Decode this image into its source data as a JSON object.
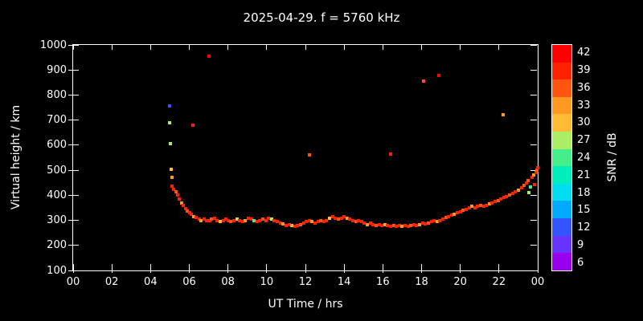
{
  "chart_data": {
    "type": "scatter",
    "title": "2025-04-29. f = 5760 kHz",
    "xlabel": "UT Time / hrs",
    "ylabel": "Virtual height / km",
    "colorbar_label": "SNR / dB",
    "background": "#000000",
    "grid": false,
    "xlim": [
      0,
      24
    ],
    "ylim": [
      100,
      1000
    ],
    "xticks": [
      {
        "v": 0,
        "label": "00"
      },
      {
        "v": 2,
        "label": "02"
      },
      {
        "v": 4,
        "label": "04"
      },
      {
        "v": 6,
        "label": "06"
      },
      {
        "v": 8,
        "label": "08"
      },
      {
        "v": 10,
        "label": "10"
      },
      {
        "v": 12,
        "label": "12"
      },
      {
        "v": 14,
        "label": "14"
      },
      {
        "v": 16,
        "label": "16"
      },
      {
        "v": 18,
        "label": "18"
      },
      {
        "v": 20,
        "label": "20"
      },
      {
        "v": 22,
        "label": "22"
      },
      {
        "v": 24,
        "label": "00"
      }
    ],
    "yticks": [
      100,
      200,
      300,
      400,
      500,
      600,
      700,
      800,
      900,
      1000
    ],
    "colorbar": {
      "min": 6,
      "max": 42,
      "step": 3,
      "labels": [
        42,
        39,
        36,
        33,
        30,
        27,
        24,
        21,
        18,
        15,
        12,
        9,
        6
      ],
      "stops": [
        {
          "value": 6,
          "color": "#9900ee"
        },
        {
          "value": 9,
          "color": "#6633ff"
        },
        {
          "value": 12,
          "color": "#3355ff"
        },
        {
          "value": 15,
          "color": "#00aaff"
        },
        {
          "value": 18,
          "color": "#00ddee"
        },
        {
          "value": 21,
          "color": "#00eebb"
        },
        {
          "value": 24,
          "color": "#44ee88"
        },
        {
          "value": 27,
          "color": "#aaee66"
        },
        {
          "value": 30,
          "color": "#ffbb33"
        },
        {
          "value": 33,
          "color": "#ff9922"
        },
        {
          "value": 36,
          "color": "#ff5511"
        },
        {
          "value": 39,
          "color": "#ff2200"
        },
        {
          "value": 42,
          "color": "#ff0000"
        }
      ]
    },
    "points_format": [
      "ut_hours",
      "virtual_height_km",
      "snr_db"
    ],
    "points": [
      [
        4.97,
        755,
        12
      ],
      [
        5.0,
        690,
        26
      ],
      [
        5.03,
        605,
        27
      ],
      [
        5.07,
        505,
        30
      ],
      [
        5.1,
        470,
        33
      ],
      [
        5.12,
        435,
        40
      ],
      [
        5.2,
        425,
        40
      ],
      [
        5.3,
        415,
        37
      ],
      [
        5.4,
        400,
        40
      ],
      [
        5.5,
        385,
        40
      ],
      [
        5.6,
        370,
        34
      ],
      [
        5.7,
        360,
        40
      ],
      [
        5.8,
        348,
        40
      ],
      [
        5.9,
        338,
        37
      ],
      [
        6.0,
        330,
        40
      ],
      [
        6.1,
        324,
        40
      ],
      [
        6.2,
        680,
        38
      ],
      [
        6.22,
        316,
        34
      ],
      [
        6.35,
        310,
        40
      ],
      [
        6.5,
        305,
        40
      ],
      [
        6.6,
        300,
        34
      ],
      [
        6.75,
        304,
        40
      ],
      [
        6.9,
        299,
        40
      ],
      [
        7.03,
        955,
        41
      ],
      [
        7.05,
        298,
        40
      ],
      [
        7.15,
        304,
        37
      ],
      [
        7.3,
        309,
        40
      ],
      [
        7.45,
        300,
        40
      ],
      [
        7.6,
        295,
        30
      ],
      [
        7.75,
        300,
        40
      ],
      [
        7.9,
        304,
        40
      ],
      [
        8.0,
        299,
        40
      ],
      [
        8.15,
        295,
        37
      ],
      [
        8.3,
        300,
        40
      ],
      [
        8.45,
        304,
        27
      ],
      [
        8.6,
        299,
        40
      ],
      [
        8.75,
        295,
        40
      ],
      [
        8.9,
        300,
        34
      ],
      [
        9.05,
        308,
        40
      ],
      [
        9.2,
        304,
        40
      ],
      [
        9.35,
        299,
        24
      ],
      [
        9.5,
        295,
        40
      ],
      [
        9.65,
        300,
        40
      ],
      [
        9.8,
        304,
        37
      ],
      [
        9.95,
        300,
        40
      ],
      [
        10.1,
        308,
        40
      ],
      [
        10.25,
        304,
        27
      ],
      [
        10.4,
        299,
        40
      ],
      [
        10.55,
        294,
        40
      ],
      [
        10.7,
        290,
        40
      ],
      [
        10.85,
        285,
        34
      ],
      [
        11.0,
        280,
        40
      ],
      [
        11.15,
        284,
        40
      ],
      [
        11.3,
        280,
        30
      ],
      [
        11.45,
        276,
        40
      ],
      [
        11.6,
        280,
        40
      ],
      [
        11.75,
        284,
        37
      ],
      [
        11.9,
        289,
        40
      ],
      [
        12.05,
        294,
        40
      ],
      [
        12.2,
        560,
        37
      ],
      [
        12.2,
        299,
        40
      ],
      [
        12.35,
        294,
        34
      ],
      [
        12.5,
        290,
        40
      ],
      [
        12.65,
        294,
        40
      ],
      [
        12.8,
        299,
        37
      ],
      [
        12.95,
        294,
        40
      ],
      [
        13.1,
        300,
        40
      ],
      [
        13.25,
        308,
        30
      ],
      [
        13.4,
        314,
        40
      ],
      [
        13.55,
        309,
        40
      ],
      [
        13.7,
        304,
        37
      ],
      [
        13.85,
        309,
        40
      ],
      [
        14.0,
        314,
        40
      ],
      [
        14.15,
        309,
        34
      ],
      [
        14.3,
        304,
        40
      ],
      [
        14.45,
        299,
        40
      ],
      [
        14.6,
        294,
        37
      ],
      [
        14.75,
        299,
        40
      ],
      [
        14.9,
        294,
        40
      ],
      [
        15.05,
        289,
        40
      ],
      [
        15.2,
        284,
        34
      ],
      [
        15.35,
        289,
        40
      ],
      [
        15.5,
        284,
        40
      ],
      [
        15.65,
        280,
        37
      ],
      [
        15.8,
        284,
        40
      ],
      [
        15.95,
        280,
        40
      ],
      [
        16.1,
        284,
        30
      ],
      [
        16.25,
        280,
        40
      ],
      [
        16.4,
        565,
        40
      ],
      [
        16.42,
        275,
        40
      ],
      [
        16.55,
        280,
        37
      ],
      [
        16.7,
        275,
        40
      ],
      [
        16.85,
        279,
        40
      ],
      [
        17.0,
        275,
        34
      ],
      [
        17.15,
        279,
        40
      ],
      [
        17.3,
        275,
        40
      ],
      [
        17.45,
        280,
        37
      ],
      [
        17.6,
        284,
        40
      ],
      [
        17.75,
        280,
        40
      ],
      [
        17.9,
        284,
        34
      ],
      [
        18.05,
        289,
        40
      ],
      [
        18.1,
        857,
        37
      ],
      [
        18.2,
        285,
        40
      ],
      [
        18.35,
        290,
        37
      ],
      [
        18.5,
        294,
        40
      ],
      [
        18.65,
        299,
        40
      ],
      [
        18.8,
        294,
        34
      ],
      [
        18.9,
        879,
        41
      ],
      [
        18.95,
        300,
        40
      ],
      [
        19.1,
        305,
        40
      ],
      [
        19.25,
        310,
        37
      ],
      [
        19.4,
        315,
        40
      ],
      [
        19.55,
        320,
        40
      ],
      [
        19.7,
        325,
        34
      ],
      [
        19.85,
        330,
        40
      ],
      [
        20.0,
        335,
        40
      ],
      [
        20.15,
        340,
        37
      ],
      [
        20.3,
        345,
        40
      ],
      [
        20.45,
        350,
        40
      ],
      [
        20.6,
        355,
        34
      ],
      [
        20.75,
        350,
        40
      ],
      [
        20.9,
        355,
        40
      ],
      [
        21.05,
        360,
        37
      ],
      [
        21.2,
        355,
        40
      ],
      [
        21.35,
        360,
        40
      ],
      [
        21.5,
        365,
        34
      ],
      [
        21.65,
        370,
        40
      ],
      [
        21.8,
        375,
        40
      ],
      [
        21.95,
        380,
        37
      ],
      [
        22.1,
        385,
        40
      ],
      [
        22.2,
        720,
        34
      ],
      [
        22.25,
        390,
        40
      ],
      [
        22.4,
        395,
        40
      ],
      [
        22.55,
        400,
        37
      ],
      [
        22.7,
        406,
        40
      ],
      [
        22.85,
        414,
        40
      ],
      [
        23.0,
        420,
        34
      ],
      [
        23.15,
        430,
        40
      ],
      [
        23.3,
        440,
        37
      ],
      [
        23.4,
        450,
        40
      ],
      [
        23.5,
        460,
        37
      ],
      [
        23.55,
        410,
        27
      ],
      [
        23.62,
        432,
        24
      ],
      [
        23.7,
        470,
        40
      ],
      [
        23.78,
        480,
        34
      ],
      [
        23.85,
        442,
        40
      ],
      [
        23.9,
        490,
        40
      ],
      [
        23.95,
        500,
        37
      ],
      [
        24.0,
        510,
        40
      ]
    ]
  }
}
